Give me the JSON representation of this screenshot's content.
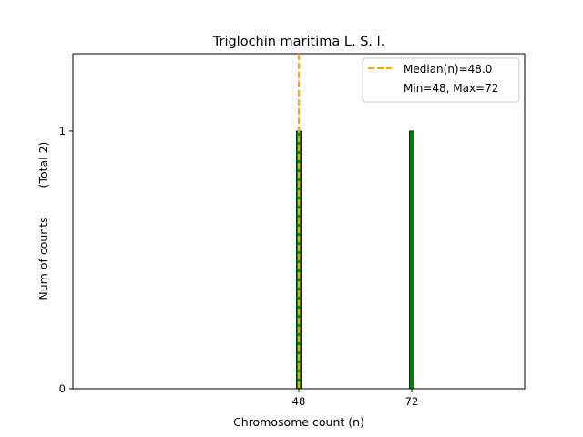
{
  "chart_data": {
    "type": "bar",
    "title": "Triglochin maritima L. S. l.",
    "xlabel": "Chromosome count (n)",
    "ylabel": "Num of counts",
    "ylabel_total": "(Total 2)",
    "x": [
      48,
      72
    ],
    "values": [
      1,
      1
    ],
    "xlim": [
      0,
      96
    ],
    "ylim": [
      0,
      1.3
    ],
    "x_ticks": [
      "48",
      "72"
    ],
    "y_ticks": [
      "0",
      "1"
    ],
    "median": 48.0,
    "bar_color": "#008000",
    "median_color": "#FFA500",
    "legend": {
      "placement": "top-right",
      "entries": [
        "Median(n)=48.0",
        "Min=48, Max=72"
      ]
    },
    "grid": false
  }
}
